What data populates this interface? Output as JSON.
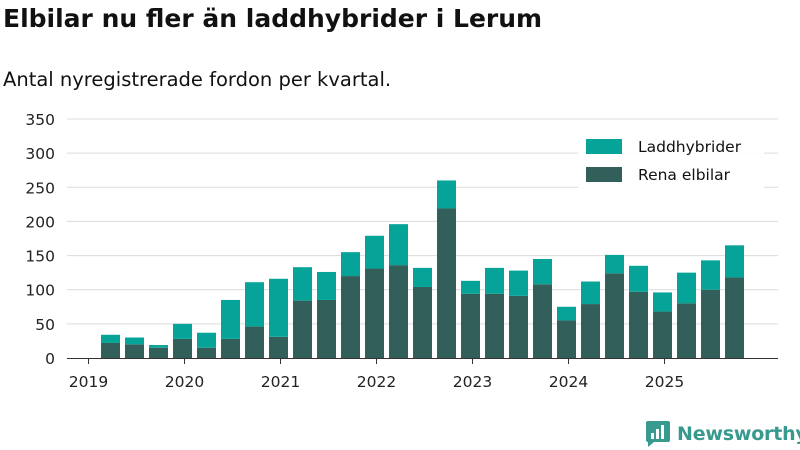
{
  "header": {
    "title": "Elbilar nu fler än laddhybrider i Lerum",
    "subtitle": "Antal nyregistrerade fordon per kvartal."
  },
  "branding": {
    "name": "Newsworthy",
    "icon": "newsworthy-logo-icon",
    "color": "#38998f"
  },
  "chart_data": {
    "type": "bar",
    "stacked": true,
    "title": "Elbilar nu fler än laddhybrider i Lerum",
    "subtitle": "Antal nyregistrerade fordon per kvartal.",
    "xlabel": "",
    "ylabel": "",
    "ylim": [
      0,
      350
    ],
    "yticks": [
      0,
      50,
      100,
      150,
      200,
      250,
      300,
      350
    ],
    "grid": "horizontal",
    "legend_position": "top-right",
    "x_tick_labels": [
      "2019",
      "2020",
      "2021",
      "2022",
      "2023",
      "2024",
      "2025"
    ],
    "categories": [
      "2019 Q2",
      "2019 Q3",
      "2019 Q4",
      "2020 Q1",
      "2020 Q2",
      "2020 Q3",
      "2020 Q4",
      "2021 Q1",
      "2021 Q2",
      "2021 Q3",
      "2021 Q4",
      "2022 Q1",
      "2022 Q2",
      "2022 Q3",
      "2022 Q4",
      "2023 Q1",
      "2023 Q2",
      "2023 Q3",
      "2023 Q4",
      "2024 Q1",
      "2024 Q2",
      "2024 Q3",
      "2024 Q4",
      "2025 Q1",
      "2025 Q2",
      "2025 Q3",
      "2025 Q4"
    ],
    "series": [
      {
        "name": "Rena elbilar",
        "color": "#335f5b",
        "values": [
          22,
          20,
          15,
          28,
          15,
          28,
          46,
          31,
          84,
          85,
          120,
          131,
          136,
          104,
          219,
          94,
          94,
          91,
          108,
          55,
          79,
          124,
          97,
          68,
          80,
          100,
          118
        ]
      },
      {
        "name": "Laddhybrider",
        "color": "#06a498",
        "values": [
          12,
          10,
          4,
          22,
          22,
          57,
          65,
          85,
          49,
          41,
          35,
          48,
          60,
          28,
          41,
          19,
          38,
          37,
          37,
          20,
          33,
          27,
          38,
          28,
          45,
          43,
          47
        ]
      }
    ]
  }
}
